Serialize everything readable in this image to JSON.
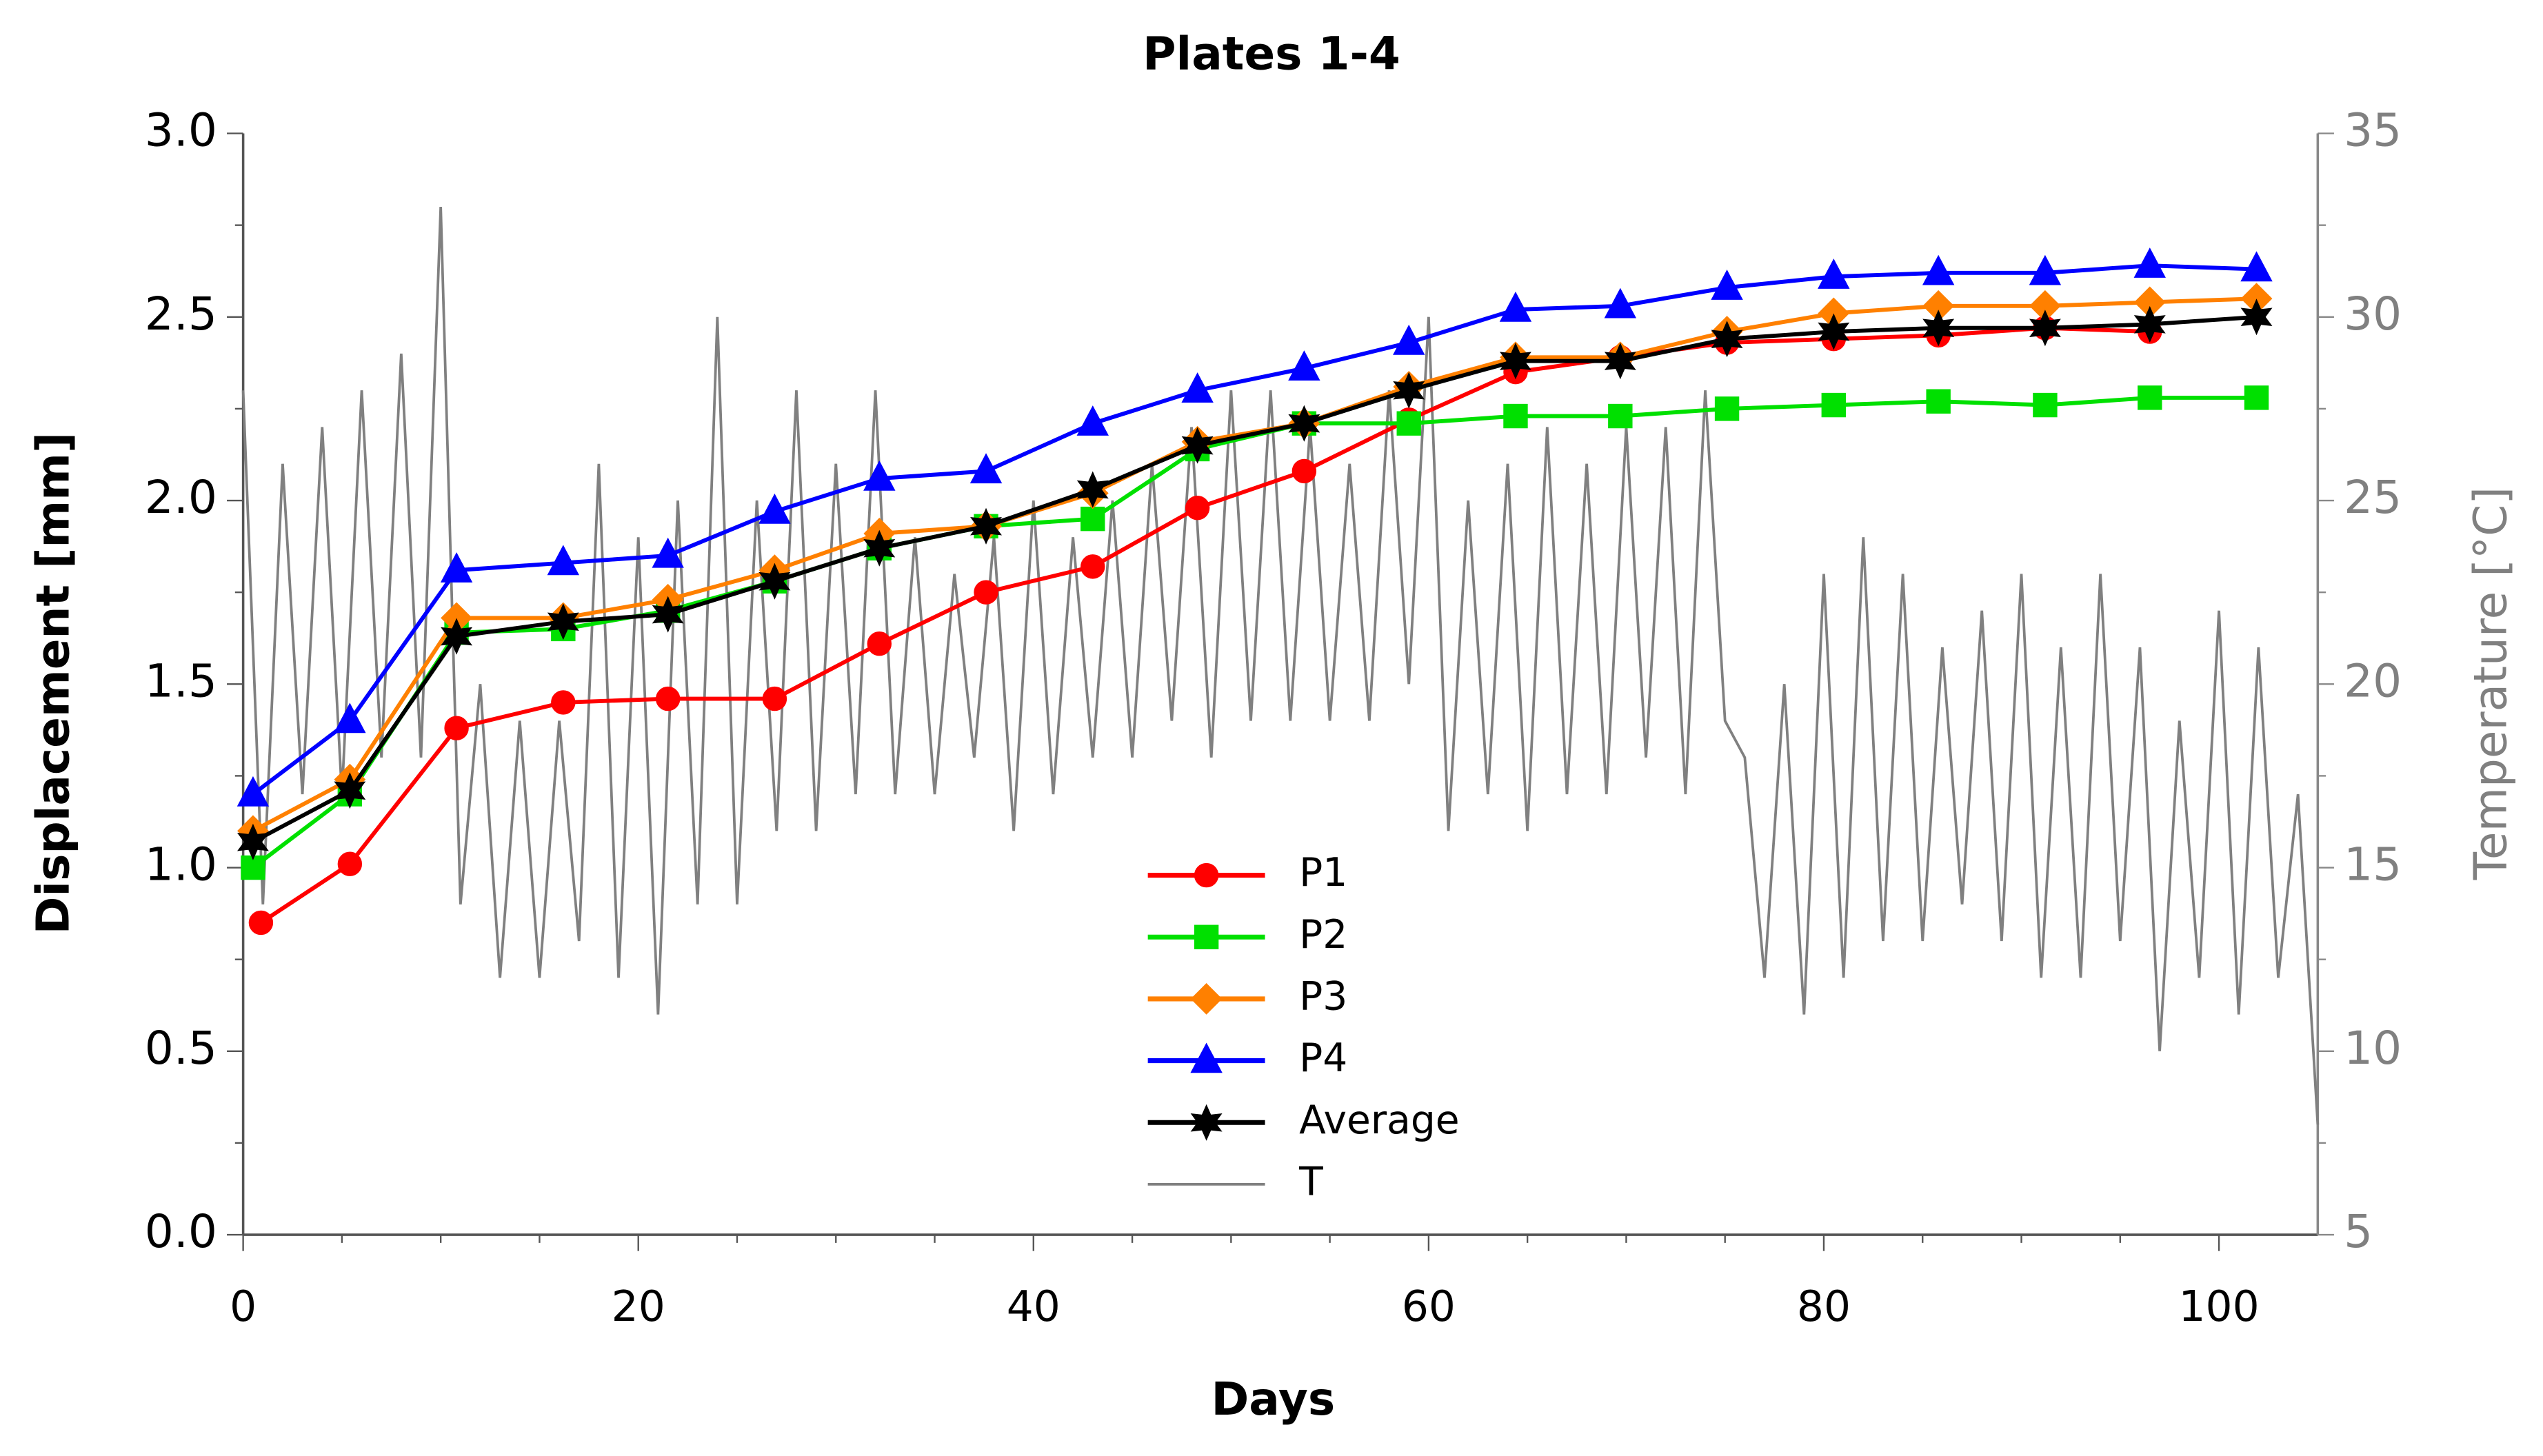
{
  "chart_data": {
    "type": "line",
    "title": "Plates 1-4",
    "x_label": "Days",
    "y_label": "Displacement [mm]",
    "y2_label": "Temperature [°C]",
    "xlim": [
      0,
      105
    ],
    "xticks": [
      0,
      20,
      40,
      60,
      80,
      100
    ],
    "ylim": [
      0,
      3
    ],
    "yticks": [
      {
        "value": 0,
        "label": "0.0"
      },
      0.5,
      {
        "value": 1,
        "label": "1.0"
      },
      1.5,
      {
        "value": 2,
        "label": "2.0"
      },
      2.5,
      {
        "value": 3,
        "label": "3.0"
      }
    ],
    "y2lim": [
      5,
      35
    ],
    "y2ticks": [
      5,
      10,
      15,
      20,
      25,
      30,
      35
    ],
    "series": [
      {
        "name": "P1",
        "color": "#ff0000",
        "marker": "circle",
        "x": [
          0.9,
          5.4,
          10.8,
          16.2,
          21.5,
          26.9,
          32.2,
          37.6,
          43.0,
          48.3,
          53.7,
          59.0,
          64.4,
          69.7,
          75.1,
          80.5,
          85.8,
          91.2,
          96.5
        ],
        "values": [
          0.85,
          1.01,
          1.38,
          1.45,
          1.46,
          1.46,
          1.61,
          1.75,
          1.82,
          1.98,
          2.08,
          2.22,
          2.35,
          2.39,
          2.43,
          2.44,
          2.45,
          2.47,
          2.46
        ]
      },
      {
        "name": "P2",
        "color": "#00e000",
        "marker": "square",
        "x": [
          0.5,
          5.4,
          10.8,
          16.2,
          21.5,
          26.9,
          32.2,
          37.6,
          43.0,
          48.3,
          53.7,
          59.0,
          64.4,
          69.7,
          75.1,
          80.5,
          85.8,
          91.2,
          96.5,
          101.9
        ],
        "values": [
          1.0,
          1.2,
          1.64,
          1.65,
          1.7,
          1.78,
          1.87,
          1.93,
          1.95,
          2.14,
          2.21,
          2.21,
          2.23,
          2.23,
          2.25,
          2.26,
          2.27,
          2.26,
          2.28,
          2.28
        ]
      },
      {
        "name": "P3",
        "color": "#ff8000",
        "marker": "diamond",
        "x": [
          0.5,
          5.4,
          10.8,
          16.2,
          21.5,
          26.9,
          32.2,
          37.6,
          43.0,
          48.3,
          53.7,
          59.0,
          64.4,
          69.7,
          75.1,
          80.5,
          85.8,
          91.2,
          96.5,
          101.9
        ],
        "values": [
          1.1,
          1.24,
          1.68,
          1.68,
          1.73,
          1.81,
          1.91,
          1.93,
          2.02,
          2.16,
          2.21,
          2.31,
          2.39,
          2.39,
          2.46,
          2.51,
          2.53,
          2.53,
          2.54,
          2.55
        ]
      },
      {
        "name": "P4",
        "color": "#0000ff",
        "marker": "triangle",
        "x": [
          0.5,
          5.4,
          10.8,
          16.2,
          21.5,
          26.9,
          32.2,
          37.6,
          43.0,
          48.3,
          53.7,
          59.0,
          64.4,
          69.7,
          75.1,
          80.5,
          85.8,
          91.2,
          96.5,
          101.9
        ],
        "values": [
          1.2,
          1.4,
          1.81,
          1.83,
          1.85,
          1.97,
          2.06,
          2.08,
          2.21,
          2.3,
          2.36,
          2.43,
          2.52,
          2.53,
          2.58,
          2.61,
          2.62,
          2.62,
          2.64,
          2.63
        ]
      },
      {
        "name": "Average",
        "color": "#000000",
        "marker": "star",
        "x": [
          0.5,
          5.4,
          10.8,
          16.2,
          21.5,
          26.9,
          32.2,
          37.6,
          43.0,
          48.3,
          53.7,
          59.0,
          64.4,
          69.7,
          75.1,
          80.5,
          85.8,
          91.2,
          96.5,
          101.9
        ],
        "values": [
          1.07,
          1.21,
          1.63,
          1.67,
          1.69,
          1.78,
          1.87,
          1.93,
          2.03,
          2.15,
          2.21,
          2.3,
          2.38,
          2.38,
          2.44,
          2.46,
          2.47,
          2.47,
          2.48,
          2.5
        ]
      },
      {
        "name": "T",
        "color": "#808080",
        "axis": "y2",
        "x": [
          0,
          1,
          2,
          3,
          4,
          5,
          6,
          7,
          8,
          9,
          10,
          11,
          12,
          13,
          14,
          15,
          16,
          17,
          18,
          19,
          20,
          21,
          22,
          23,
          24,
          25,
          26,
          27,
          28,
          29,
          30,
          31,
          32,
          33,
          34,
          35,
          36,
          37,
          38,
          39,
          40,
          41,
          42,
          43,
          44,
          45,
          46,
          47,
          48,
          49,
          50,
          51,
          52,
          53,
          54,
          55,
          56,
          57,
          58,
          59,
          60,
          61,
          62,
          63,
          64,
          65,
          66,
          67,
          68,
          69,
          70,
          71,
          72,
          73,
          74,
          75,
          76,
          77,
          78,
          79,
          80,
          81,
          82,
          83,
          84,
          85,
          86,
          87,
          88,
          89,
          90,
          91,
          92,
          93,
          94,
          95,
          96,
          97,
          98,
          99,
          100,
          101,
          102,
          103,
          104,
          105
        ],
        "values": [
          28,
          14,
          26,
          17,
          27,
          17,
          28,
          18,
          29,
          18,
          33,
          14,
          20,
          12,
          19,
          12,
          19,
          13,
          26,
          12,
          24,
          11,
          25,
          14,
          30,
          14,
          25,
          16,
          28,
          16,
          26,
          17,
          28,
          17,
          24,
          17,
          23,
          18,
          24,
          16,
          25,
          17,
          24,
          18,
          25,
          18,
          26,
          19,
          27,
          18,
          28,
          19,
          28,
          19,
          27,
          19,
          26,
          19,
          28,
          20,
          30,
          16,
          25,
          17,
          26,
          16,
          27,
          17,
          26,
          17,
          27,
          18,
          27,
          17,
          28,
          19,
          18,
          12,
          20,
          11,
          23,
          12,
          24,
          13,
          23,
          13,
          21,
          14,
          22,
          13,
          23,
          12,
          21,
          12,
          23,
          13,
          21,
          10,
          19,
          12,
          22,
          11,
          21,
          12,
          17,
          8
        ]
      }
    ]
  }
}
